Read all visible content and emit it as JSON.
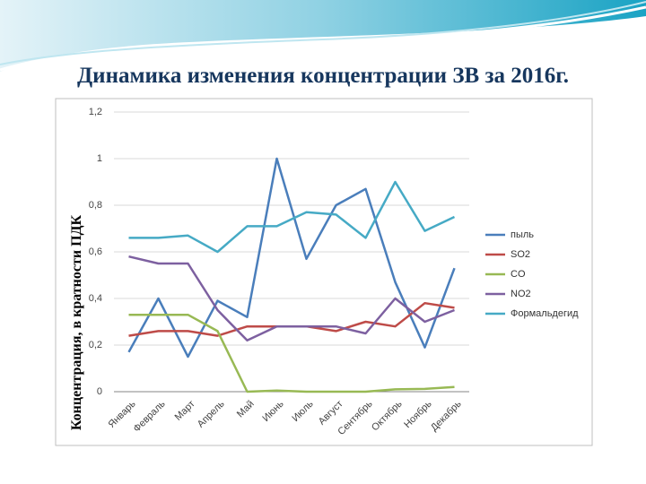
{
  "chart_data": {
    "type": "line",
    "title": "Динамика изменения концентрации ЗВ за 2016г.",
    "y_label": "Концентрация, в кратности ПДК",
    "categories": [
      "Январь",
      "Февраль",
      "Март",
      "Апрель",
      "Май",
      "Июнь",
      "Июль",
      "Август",
      "Сентябрь",
      "Октябрь",
      "Ноябрь",
      "Декабрь"
    ],
    "series": [
      {
        "name": "пыль",
        "color": "#4a7ebb",
        "values": [
          0.17,
          0.4,
          0.15,
          0.39,
          0.32,
          1.0,
          0.57,
          0.8,
          0.87,
          0.47,
          0.19,
          0.53
        ]
      },
      {
        "name": "SO2",
        "color": "#be4b48",
        "values": [
          0.24,
          0.26,
          0.26,
          0.24,
          0.28,
          0.28,
          0.28,
          0.26,
          0.3,
          0.28,
          0.38,
          0.36
        ]
      },
      {
        "name": "CO",
        "color": "#98b954",
        "values": [
          0.33,
          0.33,
          0.33,
          0.26,
          0.0,
          0.005,
          0.0,
          0.0,
          0.0,
          0.01,
          0.012,
          0.02
        ]
      },
      {
        "name": "NO2",
        "color": "#7d60a0",
        "values": [
          0.58,
          0.55,
          0.55,
          0.35,
          0.22,
          0.28,
          0.28,
          0.28,
          0.25,
          0.4,
          0.3,
          0.35
        ]
      },
      {
        "name": "Формальдегид",
        "color": "#46aac5",
        "values": [
          0.66,
          0.66,
          0.67,
          0.6,
          0.71,
          0.71,
          0.77,
          0.76,
          0.66,
          0.9,
          0.69,
          0.75
        ]
      }
    ],
    "ylim": [
      0,
      1.2
    ],
    "yticks": [
      0,
      {
        "value": 0.2,
        "label": "0,2"
      },
      {
        "value": 0.4,
        "label": "0,4"
      },
      {
        "value": 0.6,
        "label": "0,6"
      },
      {
        "value": 0.8,
        "label": "0,8"
      },
      1,
      {
        "value": 1.2,
        "label": "1,2"
      }
    ],
    "grid": true,
    "legend": "right"
  }
}
